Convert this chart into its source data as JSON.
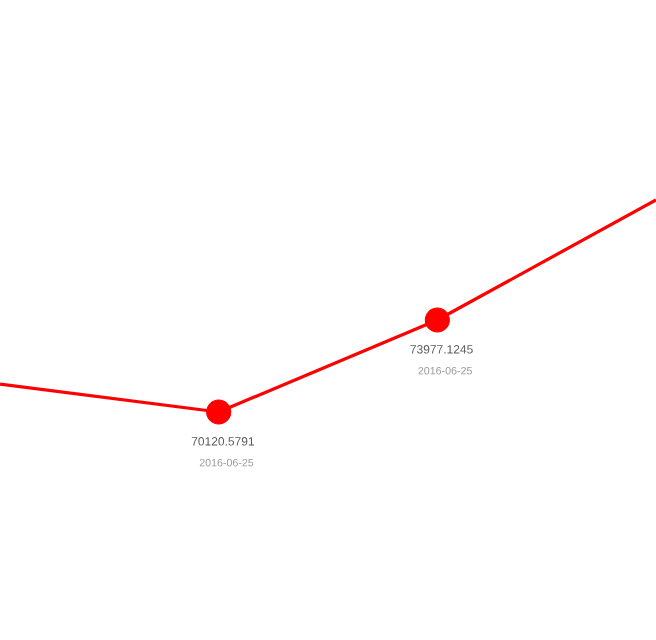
{
  "chart_data": {
    "type": "line",
    "categories": [
      null,
      null,
      null,
      null
    ],
    "series": [
      {
        "color": "#ff0000",
        "values": [
          71290,
          70120.5791,
          73977.1245,
          79010
        ],
        "value_labels": [
          null,
          "70120.5791",
          "73977.1245",
          null
        ]
      }
    ],
    "annotations": [
      "2016-06-25",
      "2016-06-25"
    ],
    "marker": "circle"
  }
}
